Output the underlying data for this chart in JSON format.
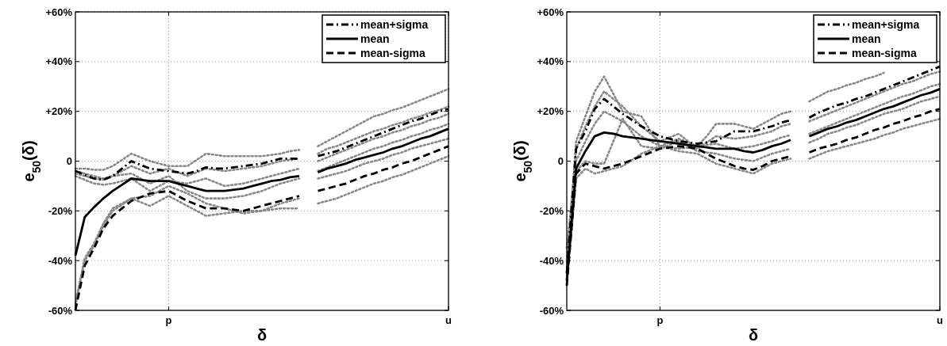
{
  "chart_data": [
    {
      "type": "line",
      "xlabel": "δ",
      "ylabel": "e$_{50}$(δ)",
      "ylim": [
        -60,
        60
      ],
      "categories": [
        null,
        null,
        null,
        null,
        null,
        null,
        null,
        null,
        null,
        null,
        "p",
        null,
        null,
        null,
        null,
        null,
        null,
        null,
        null,
        null,
        null,
        null,
        null,
        null,
        null,
        null,
        null,
        null,
        null,
        null,
        null,
        null,
        null,
        null,
        null,
        null,
        null,
        null,
        null,
        null,
        "u"
      ],
      "yticks": [
        {
          "value": -60,
          "label": "-60%"
        },
        {
          "value": -40,
          "label": "-40%"
        },
        {
          "value": -20,
          "label": "-20%"
        },
        0,
        {
          "value": 20,
          "label": "+20%"
        },
        {
          "value": 40,
          "label": "+40%"
        },
        {
          "value": 60,
          "label": "+60%"
        }
      ],
      "grid": true,
      "legend": "top right",
      "series": [
        {
          "color": "#888888",
          "line_style": "dotted",
          "values": [
            -3,
            -3,
            -3.5,
            -3.5,
            -2,
            0.5,
            3,
            1.5,
            0,
            -1,
            -2,
            -2,
            -2,
            0.5,
            3,
            2.5,
            2,
            2,
            2,
            2,
            2,
            2.5,
            3,
            4,
            4.5,
            null,
            6,
            8,
            10,
            12,
            14,
            16,
            18,
            19,
            20.5,
            21.5,
            23,
            24.5,
            26,
            27.5,
            29
          ]
        },
        {
          "color": "#888888",
          "line_style": "dotted",
          "values": [
            -5,
            -6,
            -7,
            -7.5,
            -6,
            -4,
            -2,
            -3.5,
            -5,
            -4,
            -3,
            -4.5,
            -6,
            -4.5,
            -3,
            -3.5,
            -4,
            -3.5,
            -3,
            -2.5,
            -2,
            -1,
            0,
            0.5,
            1,
            null,
            3,
            5,
            6,
            7.5,
            9,
            10.5,
            12,
            13,
            14.5,
            15.5,
            17,
            18,
            19.5,
            20.5,
            22
          ]
        },
        {
          "color": "#888888",
          "line_style": "dotted",
          "values": [
            -6,
            -7.5,
            -9,
            -9.5,
            -9,
            -8,
            -7,
            -9.5,
            -12,
            -10,
            -8,
            -8.5,
            -9,
            -8,
            -7,
            -8.5,
            -10,
            -9.5,
            -9,
            -8,
            -7,
            -6,
            -5,
            -4,
            -3,
            null,
            0,
            1.5,
            3,
            4.5,
            6,
            7.5,
            9,
            10,
            11.5,
            12.5,
            14,
            15,
            16.5,
            17.5,
            19
          ]
        },
        {
          "color": "#888888",
          "line_style": "dotted",
          "values": [
            -58,
            -40,
            -34,
            -26,
            -20,
            -17.5,
            -15,
            -14.5,
            -14,
            -12,
            -10,
            -11.5,
            -13,
            -15,
            -17,
            -18,
            -19,
            -20,
            -21,
            -20.5,
            -20,
            -18.5,
            -17,
            -16,
            -15,
            null,
            -7,
            -6,
            -5,
            -4,
            -2.5,
            -1,
            0,
            1,
            2.5,
            3.5,
            5,
            6,
            7,
            8,
            9
          ]
        },
        {
          "color": "#888888",
          "line_style": "dotted",
          "values": [
            -57,
            -39,
            -33,
            -25,
            -19,
            -17,
            -15,
            -16.5,
            -18,
            -16,
            -14,
            -16,
            -18,
            -20,
            -22,
            -21.5,
            -21,
            -20.5,
            -20,
            -20,
            -20,
            -19.5,
            -19,
            -19,
            -19,
            null,
            -17,
            -16,
            -15,
            -13.5,
            -12,
            -10.5,
            -9,
            -8,
            -6.5,
            -5.5,
            -4,
            -2.5,
            -1,
            0.5,
            2
          ]
        },
        {
          "color": "#888888",
          "line_style": "dotted",
          "values": [
            -4,
            -5,
            -6,
            -7,
            -6,
            -5.5,
            -5,
            -7,
            -9,
            -7.5,
            -6,
            -9,
            -12,
            -13.5,
            -15,
            -15,
            -15,
            -14.5,
            -14,
            -13,
            -12,
            -10.5,
            -9,
            -8,
            -7,
            null,
            -4,
            -2.5,
            -1,
            0.5,
            2,
            3.5,
            5,
            6,
            7.5,
            8.5,
            10,
            11,
            12.5,
            13.5,
            15
          ]
        },
        {
          "name": "mean+sigma",
          "color": "#000000",
          "line_style": "dashdot",
          "values": [
            -4,
            -5.5,
            -7,
            -7.5,
            -6,
            -3,
            0,
            -1.5,
            -3,
            -3.5,
            -4,
            -4.5,
            -5,
            -4,
            -2.5,
            -3,
            -3,
            -2.5,
            -2,
            -1.5,
            -1,
            0,
            1,
            1,
            1,
            null,
            2,
            3,
            4,
            5.5,
            7,
            8.5,
            10,
            11.5,
            13,
            14.5,
            16,
            17,
            18.5,
            20,
            21
          ]
        },
        {
          "name": "mean",
          "color": "#000000",
          "line_style": "solid",
          "values": [
            -38,
            -22.5,
            -18.5,
            -15,
            -12,
            -9.5,
            -7,
            -7.5,
            -8,
            -8,
            -8,
            -9,
            -10,
            -11,
            -12,
            -12,
            -12,
            -11.5,
            -11,
            -10,
            -9,
            -8,
            -7.5,
            -6.5,
            -6,
            null,
            -4.5,
            -3,
            -2,
            -1,
            0.5,
            1.5,
            2.5,
            3.5,
            5,
            6,
            7.5,
            9,
            10,
            11.5,
            13
          ]
        },
        {
          "name": "mean-sigma",
          "color": "#000000",
          "line_style": "dashed",
          "values": [
            -60,
            -42,
            -35,
            -27,
            -22,
            -19,
            -16,
            -14.5,
            -13,
            -12.5,
            -12,
            -14,
            -16,
            -17.5,
            -19,
            -19,
            -19,
            -19.5,
            -20,
            -19,
            -18,
            -17,
            -16,
            -15,
            -14,
            null,
            -12,
            -11,
            -10,
            -9,
            -7.5,
            -6,
            -5,
            -3.5,
            -2.5,
            -1,
            0,
            1.5,
            3,
            4.5,
            6
          ]
        }
      ]
    },
    {
      "type": "line",
      "xlabel": "δ",
      "ylabel": "e$_{50}$(δ)",
      "ylim": [
        -60,
        60
      ],
      "categories": [
        null,
        null,
        null,
        null,
        null,
        null,
        null,
        null,
        null,
        null,
        "p",
        null,
        null,
        null,
        null,
        null,
        null,
        null,
        null,
        null,
        null,
        null,
        null,
        null,
        null,
        null,
        null,
        null,
        null,
        null,
        null,
        null,
        null,
        null,
        null,
        null,
        null,
        null,
        null,
        null,
        "u"
      ],
      "yticks": [
        {
          "value": -60,
          "label": "-60%"
        },
        {
          "value": -40,
          "label": "-40%"
        },
        {
          "value": -20,
          "label": "-20%"
        },
        0,
        {
          "value": 20,
          "label": "+20%"
        },
        {
          "value": 40,
          "label": "+40%"
        },
        {
          "value": 60,
          "label": "+60%"
        }
      ],
      "grid": true,
      "legend": "top right",
      "series": [
        {
          "color": "#888888",
          "line_style": "dotted",
          "values": [
            -45,
            8,
            18,
            28,
            34,
            27,
            20,
            19,
            18,
            12,
            6,
            7.5,
            9,
            7.5,
            6,
            10,
            15,
            15,
            15,
            14,
            13,
            15,
            17,
            19,
            20,
            null,
            24,
            26,
            28,
            29,
            30.5,
            31.5,
            33,
            34,
            35.5,
            null,
            null,
            null,
            null,
            null,
            null
          ]
        },
        {
          "color": "#888888",
          "line_style": "dotted",
          "values": [
            -40,
            5,
            14,
            22,
            28,
            25,
            22,
            18,
            14,
            11,
            8,
            9.5,
            11,
            8,
            5,
            7.5,
            10,
            9.5,
            9,
            9.5,
            10,
            11,
            12,
            14,
            15,
            null,
            16,
            17.5,
            19,
            20.5,
            22,
            23.5,
            25,
            26.5,
            28,
            29.5,
            31,
            32,
            33.5,
            35,
            36
          ]
        },
        {
          "color": "#888888",
          "line_style": "dotted",
          "values": [
            -35,
            0,
            8,
            15,
            20,
            18,
            16,
            13,
            10,
            8,
            6,
            5.5,
            5,
            5.5,
            6,
            6.5,
            7,
            6,
            5,
            5.5,
            6,
            7,
            8,
            9.5,
            10.5,
            null,
            11,
            12.5,
            14,
            15.5,
            17,
            18.5,
            20,
            21.5,
            23,
            24.5,
            26,
            27,
            28.5,
            30,
            31
          ]
        },
        {
          "color": "#888888",
          "line_style": "dotted",
          "values": [
            -50,
            -7,
            -3,
            -5,
            -4,
            -3,
            -2,
            0.5,
            3,
            4.5,
            6,
            5,
            4,
            3.5,
            3,
            1,
            -1,
            -2,
            -3,
            -4,
            -5,
            -3,
            -1,
            0,
            1,
            null,
            1,
            2.5,
            4,
            5,
            6,
            7,
            8,
            9,
            10.5,
            11.5,
            13,
            14,
            15,
            16,
            17
          ]
        },
        {
          "color": "#888888",
          "line_style": "dotted",
          "values": [
            -48,
            -4,
            0,
            -1,
            -1,
            8,
            17,
            11.5,
            6,
            5.5,
            5,
            6.5,
            8,
            6,
            4,
            3.5,
            3,
            2,
            1,
            0.5,
            0,
            1.5,
            3,
            4,
            5,
            null,
            7.5,
            9,
            11,
            12,
            13.5,
            14.5,
            16,
            17.5,
            19,
            20,
            21,
            22.5,
            24,
            25,
            26
          ]
        },
        {
          "name": "mean+sigma",
          "color": "#000000",
          "line_style": "dashdot",
          "values": [
            -45,
            5,
            12,
            21,
            25,
            22,
            19,
            16.5,
            14,
            12,
            10,
            9,
            8,
            7.5,
            7,
            7.5,
            8,
            10,
            12,
            12,
            12,
            13,
            14,
            15.5,
            16.5,
            null,
            17.5,
            19.5,
            21,
            22.5,
            23.5,
            25,
            26,
            27.5,
            29,
            30.5,
            32,
            33.5,
            35,
            36.5,
            38
          ]
        },
        {
          "name": "mean",
          "color": "#000000",
          "line_style": "solid",
          "values": [
            -48,
            -3,
            4,
            10,
            11.5,
            11,
            10,
            9.5,
            9,
            8.5,
            8,
            7.5,
            7,
            6.5,
            6,
            5.5,
            5,
            5,
            5,
            4,
            3.5,
            4.5,
            6,
            7,
            8.5,
            null,
            10,
            11.5,
            13,
            14,
            15.5,
            16.5,
            18,
            19.5,
            21,
            22,
            23.5,
            25,
            26.5,
            27.5,
            29
          ]
        },
        {
          "name": "mean-sigma",
          "color": "#000000",
          "line_style": "dashed",
          "values": [
            -50,
            -5,
            -1,
            -2,
            -3,
            -2,
            -1,
            0.5,
            2,
            3.5,
            5,
            5.5,
            6,
            5.5,
            5,
            3,
            1,
            -0.5,
            -2,
            -3,
            -3.5,
            -2,
            0,
            1,
            2,
            null,
            3.5,
            5,
            6,
            7,
            8.5,
            9.5,
            11,
            12.5,
            13.5,
            15,
            16,
            17.5,
            18.5,
            20,
            21
          ]
        }
      ]
    }
  ]
}
